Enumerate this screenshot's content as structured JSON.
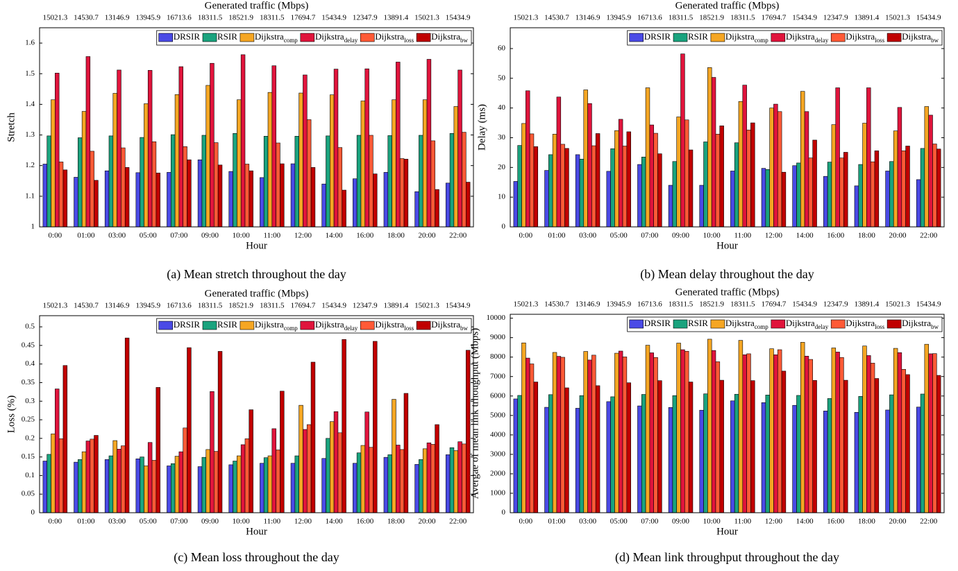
{
  "chart_data": [
    {
      "type": "bar",
      "caption": "(a) Mean stretch throughout the day",
      "top_axis_label": "Generated traffic (Mbps)",
      "top_categories": [
        "15021.3",
        "14530.7",
        "13146.9",
        "13945.9",
        "16713.6",
        "18311.5",
        "18521.9",
        "18311.5",
        "17694.7",
        "15434.9",
        "12347.9",
        "13891.4",
        "15021.3",
        "15434.9"
      ],
      "x_label": "Hour",
      "y_label": "Stretch",
      "categories": [
        "0:00",
        "01:00",
        "03:00",
        "05:00",
        "07:00",
        "09:00",
        "10:00",
        "11:00",
        "12:00",
        "14:00",
        "16:00",
        "18:00",
        "20:00",
        "22:00"
      ],
      "ylim": [
        1,
        1.65
      ],
      "yticks": [
        1,
        1.1,
        1.2,
        1.3,
        1.4,
        1.5,
        1.6
      ],
      "grid": false,
      "series": [
        {
          "name": "DRSIR",
          "color": "#4a4ae6",
          "values": [
            1.205,
            1.162,
            1.183,
            1.177,
            1.178,
            1.219,
            1.181,
            1.161,
            1.206,
            1.14,
            1.157,
            1.178,
            1.115,
            1.143
          ]
        },
        {
          "name": "RSIR",
          "color": "#1aa37e",
          "values": [
            1.297,
            1.291,
            1.297,
            1.292,
            1.301,
            1.299,
            1.305,
            1.296,
            1.296,
            1.297,
            1.299,
            1.298,
            1.299,
            1.305
          ]
        },
        {
          "name": "Dijkstra",
          "subscript": "comp",
          "color": "#f5a623",
          "values": [
            1.415,
            1.377,
            1.436,
            1.402,
            1.432,
            1.462,
            1.415,
            1.439,
            1.437,
            1.431,
            1.411,
            1.415,
            1.415,
            1.393
          ]
        },
        {
          "name": "Dijkstra",
          "subscript": "delay",
          "color": "#e0143c",
          "values": [
            1.502,
            1.556,
            1.512,
            1.511,
            1.523,
            1.534,
            1.562,
            1.526,
            1.496,
            1.515,
            1.516,
            1.538,
            1.547,
            1.512
          ]
        },
        {
          "name": "Dijkstra",
          "subscript": "loss",
          "color": "#ff5a36",
          "values": [
            1.212,
            1.247,
            1.258,
            1.278,
            1.262,
            1.275,
            1.205,
            1.274,
            1.35,
            1.259,
            1.299,
            1.223,
            1.281,
            1.309
          ]
        },
        {
          "name": "Dijkstra",
          "subscript": "bw",
          "color": "#c00000",
          "values": [
            1.186,
            1.152,
            1.194,
            1.176,
            1.219,
            1.202,
            1.183,
            1.206,
            1.194,
            1.12,
            1.173,
            1.221,
            1.122,
            1.146
          ]
        }
      ]
    },
    {
      "type": "bar",
      "caption": "(b) Mean delay throughout the day",
      "top_axis_label": "Generated traffic (Mbps)",
      "top_categories": [
        "15021.3",
        "14530.7",
        "13146.9",
        "13945.9",
        "16713.6",
        "18311.5",
        "18521.9",
        "18311.5",
        "17694.7",
        "15434.9",
        "12347.9",
        "13891.4",
        "15021.3",
        "15434.9"
      ],
      "x_label": "Hour",
      "y_label": "Delay (ms)",
      "categories": [
        "0:00",
        "01:00",
        "03:00",
        "05:00",
        "07:00",
        "09:00",
        "10:00",
        "11:00",
        "12:00",
        "14:00",
        "16:00",
        "18:00",
        "20:00",
        "22:00"
      ],
      "ylim": [
        0,
        67
      ],
      "yticks": [
        0,
        10,
        20,
        30,
        40,
        50,
        60
      ],
      "grid": false,
      "series": [
        {
          "name": "DRSIR",
          "color": "#4a4ae6",
          "values": [
            15.3,
            19.0,
            24.3,
            18.7,
            21.0,
            14.0,
            14.0,
            18.8,
            19.7,
            20.6,
            17.0,
            13.8,
            18.8,
            15.9
          ]
        },
        {
          "name": "RSIR",
          "color": "#1aa37e",
          "values": [
            27.4,
            24.3,
            22.8,
            26.3,
            23.5,
            22.0,
            28.6,
            28.3,
            19.3,
            21.5,
            21.8,
            21.0,
            22.0,
            26.4
          ]
        },
        {
          "name": "Dijkstra",
          "subscript": "comp",
          "color": "#f5a623",
          "values": [
            34.8,
            31.2,
            46.1,
            32.4,
            46.8,
            37.0,
            53.6,
            42.2,
            40.0,
            45.6,
            34.4,
            34.9,
            32.3,
            40.5
          ]
        },
        {
          "name": "Dijkstra",
          "subscript": "delay",
          "color": "#e0143c",
          "values": [
            45.8,
            43.7,
            41.5,
            36.2,
            34.3,
            58.2,
            50.3,
            47.7,
            41.3,
            38.8,
            46.8,
            46.8,
            40.2,
            37.6
          ]
        },
        {
          "name": "Dijkstra",
          "subscript": "loss",
          "color": "#ff5a36",
          "values": [
            31.3,
            27.8,
            27.3,
            27.2,
            31.5,
            36.0,
            31.2,
            32.6,
            38.8,
            23.2,
            23.2,
            21.9,
            25.6,
            27.9
          ]
        },
        {
          "name": "Dijkstra",
          "subscript": "bw",
          "color": "#c00000",
          "values": [
            27.0,
            26.4,
            31.4,
            32.0,
            24.6,
            25.9,
            34.0,
            35.0,
            18.4,
            29.2,
            25.1,
            25.6,
            27.2,
            26.2
          ]
        }
      ]
    },
    {
      "type": "bar",
      "caption": "(c) Mean loss throughout the day",
      "top_axis_label": "Generated traffic (Mbps)",
      "top_categories": [
        "15021.3",
        "14530.7",
        "13146.9",
        "13945.9",
        "16713.6",
        "18311.5",
        "18521.9",
        "18311.5",
        "17694.7",
        "15434.9",
        "12347.9",
        "13891.4",
        "15021.3",
        "15434.9"
      ],
      "x_label": "Hour",
      "y_label": "Loss (%)",
      "categories": [
        "0:00",
        "01:00",
        "03:00",
        "05:00",
        "07:00",
        "09:00",
        "10:00",
        "11:00",
        "12:00",
        "14:00",
        "16:00",
        "18:00",
        "20:00",
        "22:00"
      ],
      "ylim": [
        0,
        0.53
      ],
      "yticks": [
        0,
        0.05,
        0.1,
        0.15,
        0.2,
        0.25,
        0.3,
        0.35,
        0.4,
        0.45,
        0.5
      ],
      "grid": false,
      "series": [
        {
          "name": "DRSIR",
          "color": "#4a4ae6",
          "values": [
            0.139,
            0.136,
            0.143,
            0.145,
            0.126,
            0.124,
            0.129,
            0.133,
            0.133,
            0.146,
            0.133,
            0.149,
            0.13,
            0.156
          ]
        },
        {
          "name": "RSIR",
          "color": "#1aa37e",
          "values": [
            0.157,
            0.143,
            0.153,
            0.15,
            0.132,
            0.149,
            0.139,
            0.148,
            0.153,
            0.2,
            0.161,
            0.156,
            0.143,
            0.175
          ]
        },
        {
          "name": "Dijkstra",
          "subscript": "comp",
          "color": "#f5a623",
          "values": [
            0.212,
            0.164,
            0.194,
            0.126,
            0.152,
            0.17,
            0.153,
            0.153,
            0.289,
            0.245,
            0.181,
            0.305,
            0.172,
            0.167
          ]
        },
        {
          "name": "Dijkstra",
          "subscript": "delay",
          "color": "#e0143c",
          "values": [
            0.333,
            0.193,
            0.171,
            0.189,
            0.164,
            0.326,
            0.183,
            0.226,
            0.224,
            0.272,
            0.271,
            0.182,
            0.188,
            0.191
          ]
        },
        {
          "name": "Dijkstra",
          "subscript": "loss",
          "color": "#ff5a36",
          "values": [
            0.199,
            0.198,
            0.18,
            0.141,
            0.228,
            0.165,
            0.199,
            0.169,
            0.237,
            0.215,
            0.176,
            0.17,
            0.184,
            0.185
          ]
        },
        {
          "name": "Dijkstra",
          "subscript": "bw",
          "color": "#c00000",
          "values": [
            0.396,
            0.208,
            0.47,
            0.337,
            0.444,
            0.434,
            0.277,
            0.327,
            0.405,
            0.466,
            0.461,
            0.321,
            0.237,
            0.437
          ]
        }
      ]
    },
    {
      "type": "bar",
      "caption": "(d) Mean link throughput throughout the day",
      "top_axis_label": "Generated traffic (Mbps)",
      "top_categories": [
        "15021.3",
        "14530.7",
        "13146.9",
        "13945.9",
        "16713.6",
        "18311.5",
        "18521.9",
        "18311.5",
        "17694.7",
        "15434.9",
        "12347.9",
        "13891.4",
        "15021.3",
        "15434.9"
      ],
      "x_label": "Hour",
      "y_label": "Avergae of mean link trhoughput (Mbps)",
      "categories": [
        "0:00",
        "01:00",
        "03:00",
        "05:00",
        "07:00",
        "09:00",
        "10:00",
        "11:00",
        "12:00",
        "14:00",
        "16:00",
        "18:00",
        "20:00",
        "22:00"
      ],
      "ylim": [
        0,
        10200
      ],
      "yticks": [
        0,
        1000,
        2000,
        3000,
        4000,
        5000,
        6000,
        7000,
        8000,
        9000,
        10000
      ],
      "grid": false,
      "series": [
        {
          "name": "DRSIR",
          "color": "#4a4ae6",
          "values": [
            5850,
            5420,
            5370,
            5710,
            5490,
            5410,
            5270,
            5750,
            5660,
            5520,
            5230,
            5160,
            5280,
            5430
          ]
        },
        {
          "name": "RSIR",
          "color": "#1aa37e",
          "values": [
            6030,
            6070,
            6020,
            5960,
            6080,
            6020,
            6110,
            6090,
            6050,
            6030,
            5870,
            5980,
            6060,
            6100
          ]
        },
        {
          "name": "Dijkstra",
          "subscript": "comp",
          "color": "#f5a623",
          "values": [
            8730,
            8240,
            8290,
            8200,
            8610,
            8720,
            8920,
            8860,
            8430,
            8760,
            8470,
            8570,
            8450,
            8660
          ]
        },
        {
          "name": "Dijkstra",
          "subscript": "delay",
          "color": "#e0143c",
          "values": [
            7950,
            8040,
            7850,
            8310,
            8220,
            8380,
            8340,
            8120,
            8120,
            8050,
            8260,
            8080,
            8230,
            8170
          ]
        },
        {
          "name": "Dijkstra",
          "subscript": "loss",
          "color": "#ff5a36",
          "values": [
            7650,
            7990,
            8100,
            8010,
            7980,
            8300,
            7760,
            8170,
            8380,
            7880,
            7980,
            7690,
            7370,
            8180
          ]
        },
        {
          "name": "Dijkstra",
          "subscript": "bw",
          "color": "#c00000",
          "values": [
            6720,
            6420,
            6530,
            6680,
            6790,
            6720,
            6810,
            6790,
            7280,
            6800,
            6810,
            6900,
            7100,
            7060
          ]
        }
      ]
    }
  ]
}
